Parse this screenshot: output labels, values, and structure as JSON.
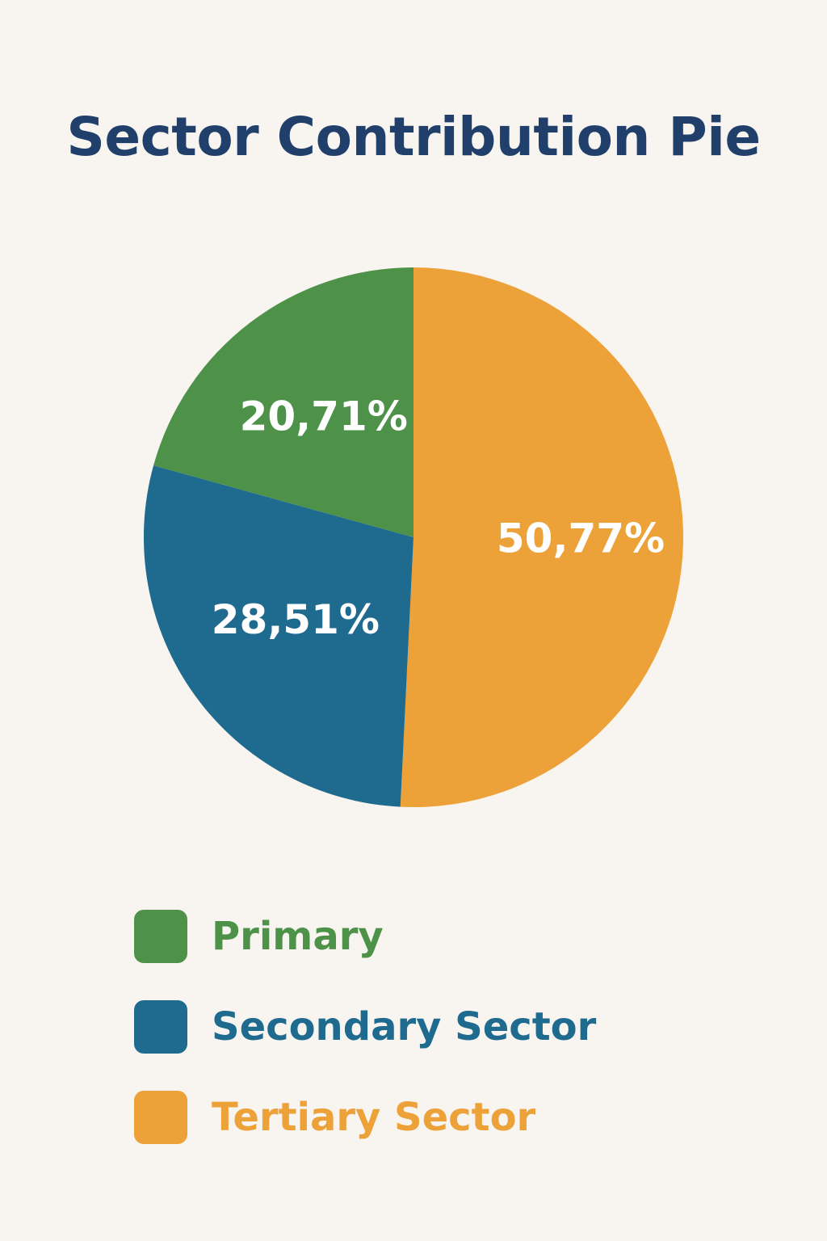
{
  "colors": {
    "title": "#213f6b",
    "primary": "#4e924a",
    "secondary": "#1f6a8f",
    "tertiary": "#eca239"
  },
  "chart_data": {
    "type": "pie",
    "title": "Sector Contribution Pie",
    "slices": [
      {
        "name": "Primary",
        "value": 20.71,
        "label": "20,71%",
        "color": "#4e924a"
      },
      {
        "name": "Secondary Sector",
        "value": 28.51,
        "label": "28,51%",
        "color": "#1f6a8f"
      },
      {
        "name": "Tertiary Sector",
        "value": 50.77,
        "label": "50,77%",
        "color": "#eca239"
      }
    ],
    "legend_position": "bottom"
  }
}
